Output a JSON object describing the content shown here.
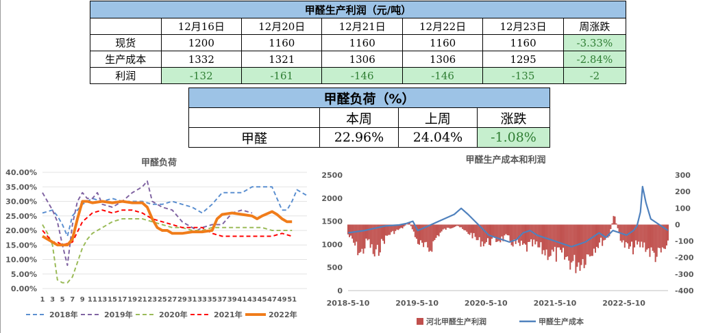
{
  "table1": {
    "title": "甲醛生产利润（元/吨）",
    "headers": [
      "",
      "12月16日",
      "12月20日",
      "12月21日",
      "12月22日",
      "12月23日",
      "周涨跌"
    ],
    "rows": [
      {
        "label": "现货",
        "values": [
          "1200",
          "1160",
          "1160",
          "1160",
          "1160"
        ],
        "change": "-3.33%"
      },
      {
        "label": "生产成本",
        "values": [
          "1332",
          "1321",
          "1306",
          "1306",
          "1295"
        ],
        "change": "-2.84%"
      },
      {
        "label": "利润",
        "values": [
          "-132",
          "-161",
          "-146",
          "-146",
          "-135"
        ],
        "change": "-2"
      }
    ]
  },
  "table2": {
    "title": "甲醛负荷（%）",
    "headers": [
      "",
      "本周",
      "上周",
      "涨跌"
    ],
    "row": {
      "label": "甲醛",
      "this_week": "22.96%",
      "last_week": "24.04%",
      "change": "-1.08%"
    }
  },
  "chart_data": [
    {
      "type": "line",
      "title": "甲醛负荷",
      "x_ticks": [
        1,
        3,
        5,
        7,
        9,
        11,
        13,
        15,
        17,
        19,
        21,
        23,
        25,
        27,
        29,
        31,
        33,
        35,
        37,
        39,
        41,
        43,
        45,
        47,
        49,
        51
      ],
      "ylim": [
        0,
        40
      ],
      "y_ticks": [
        "0.00%",
        "5.00%",
        "10.00%",
        "15.00%",
        "20.00%",
        "25.00%",
        "30.00%",
        "35.00%",
        "40.00%"
      ],
      "legend": [
        "2018年",
        "2019年",
        "2020年",
        "2021年",
        "2022年"
      ],
      "legend_position": "bottom",
      "series": [
        {
          "name": "2018年",
          "color": "#5b8fd0",
          "style": "dashed",
          "width": 2,
          "points": [
            [
              1,
              26
            ],
            [
              3,
              27
            ],
            [
              4,
              25
            ],
            [
              5,
              22
            ],
            [
              6,
              18
            ],
            [
              7,
              25
            ],
            [
              9,
              29
            ],
            [
              11,
              31
            ],
            [
              13,
              30
            ],
            [
              15,
              31
            ],
            [
              17,
              30
            ],
            [
              19,
              30
            ],
            [
              21,
              30
            ],
            [
              23,
              29
            ],
            [
              25,
              29
            ],
            [
              27,
              30
            ],
            [
              29,
              29
            ],
            [
              31,
              28
            ],
            [
              33,
              26
            ],
            [
              35,
              29
            ],
            [
              37,
              33
            ],
            [
              39,
              33
            ],
            [
              41,
              33
            ],
            [
              43,
              35
            ],
            [
              45,
              35
            ],
            [
              47,
              35
            ],
            [
              48,
              31
            ],
            [
              49,
              27
            ],
            [
              50,
              27
            ],
            [
              51,
              30
            ],
            [
              52,
              34
            ],
            [
              53,
              33
            ],
            [
              54,
              32
            ]
          ]
        },
        {
          "name": "2019年",
          "color": "#8064a2",
          "style": "dashed",
          "width": 2,
          "points": [
            [
              1,
              33
            ],
            [
              2,
              30
            ],
            [
              3,
              27
            ],
            [
              4,
              23
            ],
            [
              5,
              15
            ],
            [
              6,
              8
            ],
            [
              7,
              22
            ],
            [
              8,
              30
            ],
            [
              9,
              33
            ],
            [
              10,
              31
            ],
            [
              11,
              31
            ],
            [
              12,
              33
            ],
            [
              13,
              29
            ],
            [
              15,
              28
            ],
            [
              17,
              30
            ],
            [
              19,
              33
            ],
            [
              21,
              35
            ],
            [
              22,
              37
            ],
            [
              23,
              30
            ],
            [
              25,
              28
            ],
            [
              27,
              27
            ],
            [
              29,
              23
            ],
            [
              31,
              21
            ],
            [
              32,
              20
            ],
            [
              33,
              21
            ],
            [
              35,
              22
            ],
            [
              37,
              22
            ],
            [
              39,
              26
            ],
            [
              41,
              27
            ],
            [
              43,
              26
            ]
          ]
        },
        {
          "name": "2020年",
          "color": "#9bbb59",
          "style": "dashed",
          "width": 2,
          "points": [
            [
              1,
              22
            ],
            [
              2,
              19
            ],
            [
              3,
              15
            ],
            [
              4,
              3
            ],
            [
              5,
              2
            ],
            [
              6,
              2
            ],
            [
              7,
              4
            ],
            [
              8,
              9
            ],
            [
              9,
              14
            ],
            [
              10,
              17
            ],
            [
              11,
              19
            ],
            [
              13,
              21
            ],
            [
              15,
              23
            ],
            [
              17,
              24
            ],
            [
              19,
              24
            ],
            [
              21,
              24
            ],
            [
              23,
              23
            ],
            [
              25,
              22
            ],
            [
              27,
              21
            ],
            [
              29,
              21
            ],
            [
              31,
              20
            ],
            [
              33,
              20
            ],
            [
              35,
              21
            ],
            [
              37,
              21
            ],
            [
              39,
              21
            ],
            [
              41,
              21
            ],
            [
              43,
              21
            ],
            [
              45,
              21
            ],
            [
              47,
              20
            ],
            [
              49,
              20
            ],
            [
              51,
              20
            ]
          ]
        },
        {
          "name": "2021年",
          "color": "#ff0000",
          "style": "dashed",
          "width": 2,
          "points": [
            [
              1,
              20
            ],
            [
              2,
              18
            ],
            [
              3,
              16
            ],
            [
              4,
              16
            ],
            [
              5,
              15
            ],
            [
              7,
              16
            ],
            [
              9,
              23
            ],
            [
              11,
              26
            ],
            [
              13,
              27
            ],
            [
              15,
              26
            ],
            [
              17,
              27
            ],
            [
              19,
              27
            ],
            [
              21,
              26
            ],
            [
              23,
              24
            ],
            [
              25,
              23
            ],
            [
              27,
              22
            ],
            [
              29,
              21
            ],
            [
              31,
              21
            ],
            [
              33,
              21
            ],
            [
              35,
              19
            ],
            [
              37,
              18
            ],
            [
              39,
              18
            ],
            [
              41,
              18
            ],
            [
              43,
              18
            ],
            [
              45,
              18
            ],
            [
              47,
              18
            ],
            [
              49,
              19
            ],
            [
              51,
              18
            ]
          ]
        },
        {
          "name": "2022年",
          "color": "#f07c1a",
          "style": "solid",
          "width": 4,
          "points": [
            [
              1,
              18
            ],
            [
              2,
              17
            ],
            [
              3,
              16
            ],
            [
              4,
              15
            ],
            [
              5,
              15
            ],
            [
              6,
              15
            ],
            [
              7,
              17
            ],
            [
              8,
              24
            ],
            [
              9,
              30
            ],
            [
              10,
              30
            ],
            [
              11,
              29.5
            ],
            [
              13,
              30
            ],
            [
              15,
              29.5
            ],
            [
              17,
              30
            ],
            [
              19,
              29.5
            ],
            [
              21,
              29.5
            ],
            [
              22,
              28
            ],
            [
              23,
              24
            ],
            [
              24,
              21
            ],
            [
              25,
              20
            ],
            [
              26,
              20
            ],
            [
              27,
              19
            ],
            [
              29,
              19
            ],
            [
              31,
              19.5
            ],
            [
              33,
              19.5
            ],
            [
              35,
              20
            ],
            [
              36,
              24
            ],
            [
              37,
              25.5
            ],
            [
              39,
              26
            ],
            [
              41,
              25.5
            ],
            [
              43,
              25
            ],
            [
              44,
              24
            ],
            [
              45,
              25
            ],
            [
              47,
              26.5
            ],
            [
              48,
              25.5
            ],
            [
              49,
              24
            ],
            [
              50,
              23
            ],
            [
              51,
              23
            ]
          ]
        }
      ]
    },
    {
      "type": "bar+line",
      "title": "甲醛生产成本和利润",
      "x_ticks": [
        "2018-5-10",
        "2019-5-10",
        "2020-5-10",
        "2021-5-10",
        "2022-5-10"
      ],
      "y_left_ticks": [
        0,
        500,
        1000,
        1500,
        2000,
        2500
      ],
      "y_right_ticks": [
        300,
        200,
        100,
        0,
        -100,
        -200,
        -300,
        -400
      ],
      "ylim_left": [
        0,
        2500
      ],
      "ylim_right": [
        -400,
        300
      ],
      "legend": [
        "河北甲醛生产利润",
        "甲醛生产成本"
      ],
      "legend_position": "bottom",
      "colors": {
        "profit": "#c0504d",
        "cost": "#4f81bd"
      },
      "cost_series": [
        [
          2018.36,
          1250
        ],
        [
          2018.6,
          1300
        ],
        [
          2018.9,
          1400
        ],
        [
          2019.1,
          1420
        ],
        [
          2019.2,
          1450
        ],
        [
          2019.3,
          1500
        ],
        [
          2019.37,
          1300
        ],
        [
          2019.45,
          1350
        ],
        [
          2019.6,
          1450
        ],
        [
          2019.75,
          1550
        ],
        [
          2019.9,
          1650
        ],
        [
          2020.0,
          1780
        ],
        [
          2020.1,
          1650
        ],
        [
          2020.2,
          1500
        ],
        [
          2020.3,
          1350
        ],
        [
          2020.4,
          1200
        ],
        [
          2020.5,
          1150
        ],
        [
          2020.6,
          1100
        ],
        [
          2020.7,
          1050
        ],
        [
          2020.8,
          1100
        ],
        [
          2020.9,
          1250
        ],
        [
          2021.0,
          1300
        ],
        [
          2021.1,
          1200
        ],
        [
          2021.2,
          1150
        ],
        [
          2021.3,
          1100
        ],
        [
          2021.4,
          1050
        ],
        [
          2021.5,
          1000
        ],
        [
          2021.6,
          950
        ],
        [
          2021.7,
          1000
        ],
        [
          2021.8,
          1050
        ],
        [
          2021.9,
          1150
        ],
        [
          2022.0,
          1250
        ],
        [
          2022.1,
          1150
        ],
        [
          2022.2,
          1300
        ],
        [
          2022.3,
          1250
        ],
        [
          2022.4,
          1200
        ],
        [
          2022.5,
          1300
        ],
        [
          2022.55,
          1400
        ],
        [
          2022.6,
          1700
        ],
        [
          2022.63,
          2250
        ],
        [
          2022.68,
          1900
        ],
        [
          2022.75,
          1550
        ],
        [
          2022.85,
          1450
        ],
        [
          2022.95,
          1350
        ],
        [
          2023.0,
          1300
        ]
      ],
      "profit_series": [
        [
          2018.36,
          -60
        ],
        [
          2018.45,
          -120
        ],
        [
          2018.55,
          -180
        ],
        [
          2018.65,
          -90
        ],
        [
          2018.75,
          -200
        ],
        [
          2018.85,
          -110
        ],
        [
          2018.95,
          -60
        ],
        [
          2019.05,
          -40
        ],
        [
          2019.15,
          -20
        ],
        [
          2019.25,
          15
        ],
        [
          2019.35,
          -90
        ],
        [
          2019.45,
          -140
        ],
        [
          2019.55,
          -150
        ],
        [
          2019.65,
          -70
        ],
        [
          2019.75,
          -30
        ],
        [
          2019.85,
          -20
        ],
        [
          2019.95,
          -5
        ],
        [
          2020.05,
          -40
        ],
        [
          2020.15,
          -60
        ],
        [
          2020.25,
          -100
        ],
        [
          2020.35,
          -110
        ],
        [
          2020.45,
          -100
        ],
        [
          2020.55,
          -90
        ],
        [
          2020.65,
          -80
        ],
        [
          2020.75,
          -110
        ],
        [
          2020.85,
          -130
        ],
        [
          2020.95,
          -140
        ],
        [
          2021.05,
          -120
        ],
        [
          2021.15,
          -150
        ],
        [
          2021.25,
          -170
        ],
        [
          2021.35,
          -180
        ],
        [
          2021.45,
          -190
        ],
        [
          2021.55,
          -210
        ],
        [
          2021.65,
          -240
        ],
        [
          2021.75,
          -220
        ],
        [
          2021.85,
          -180
        ],
        [
          2021.95,
          -130
        ],
        [
          2022.05,
          -100
        ],
        [
          2022.15,
          -60
        ],
        [
          2022.22,
          60
        ],
        [
          2022.28,
          -40
        ],
        [
          2022.35,
          -120
        ],
        [
          2022.45,
          -150
        ],
        [
          2022.55,
          -130
        ],
        [
          2022.65,
          -120
        ],
        [
          2022.75,
          -170
        ],
        [
          2022.85,
          -190
        ],
        [
          2022.95,
          -150
        ],
        [
          2023.0,
          -135
        ]
      ]
    }
  ]
}
